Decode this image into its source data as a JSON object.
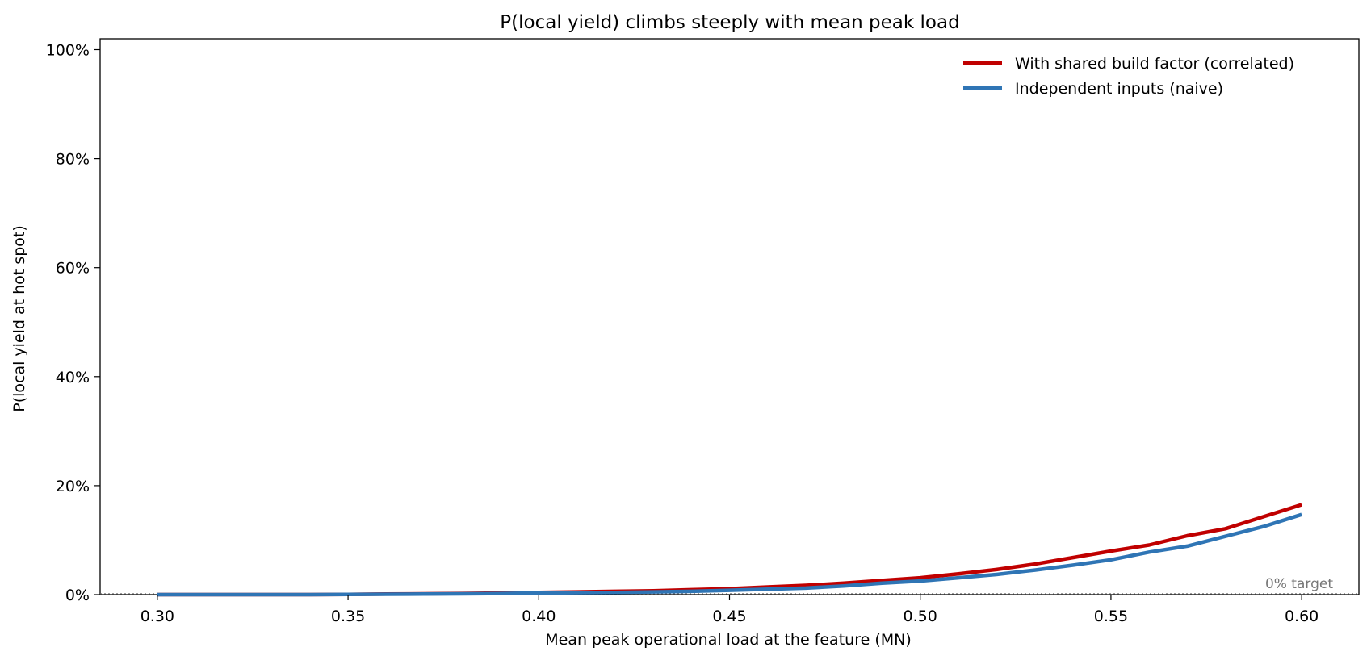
{
  "chart_data": {
    "type": "line",
    "title": "P(local yield) climbs steeply with mean peak load",
    "xlabel": "Mean peak operational load at the feature  (MN)",
    "ylabel": "P(local yield at hot spot)",
    "xlim": [
      0.285,
      0.615
    ],
    "ylim": [
      0,
      1.02
    ],
    "x_ticks": [
      0.3,
      0.35,
      0.4,
      0.45,
      0.5,
      0.55,
      0.6
    ],
    "x_tick_labels": [
      "0.30",
      "0.35",
      "0.40",
      "0.45",
      "0.50",
      "0.55",
      "0.60"
    ],
    "y_ticks": [
      0,
      0.2,
      0.4,
      0.6,
      0.8,
      1.0
    ],
    "y_tick_labels": [
      "0%",
      "20%",
      "40%",
      "60%",
      "80%",
      "100%"
    ],
    "legend_position": "top-right",
    "grid": false,
    "x": [
      0.3,
      0.31,
      0.32,
      0.33,
      0.34,
      0.35,
      0.36,
      0.37,
      0.38,
      0.39,
      0.4,
      0.41,
      0.42,
      0.43,
      0.44,
      0.45,
      0.46,
      0.47,
      0.48,
      0.49,
      0.5,
      0.51,
      0.52,
      0.53,
      0.54,
      0.55,
      0.56,
      0.57,
      0.58,
      0.59,
      0.6
    ],
    "series": [
      {
        "name": "With shared build factor (correlated)",
        "color": "#c00000",
        "values": [
          0.0,
          0.0,
          0.0,
          0.0,
          0.0,
          0.0005,
          0.001,
          0.0015,
          0.002,
          0.003,
          0.004,
          0.005,
          0.006,
          0.007,
          0.009,
          0.011,
          0.014,
          0.017,
          0.021,
          0.026,
          0.031,
          0.038,
          0.046,
          0.056,
          0.068,
          0.08,
          0.091,
          0.108,
          0.121,
          0.143,
          0.165
        ]
      },
      {
        "name": "Independent inputs (naive)",
        "color": "#2f75b5",
        "values": [
          0.0,
          0.0,
          0.0,
          0.0,
          0.0,
          0.0003,
          0.0007,
          0.001,
          0.0015,
          0.002,
          0.003,
          0.0035,
          0.004,
          0.005,
          0.006,
          0.008,
          0.01,
          0.012,
          0.016,
          0.021,
          0.025,
          0.031,
          0.037,
          0.045,
          0.054,
          0.064,
          0.078,
          0.089,
          0.107,
          0.125,
          0.147
        ]
      }
    ],
    "annotations": [
      {
        "text": "0% target",
        "y": 0,
        "style": "dotted"
      }
    ]
  }
}
